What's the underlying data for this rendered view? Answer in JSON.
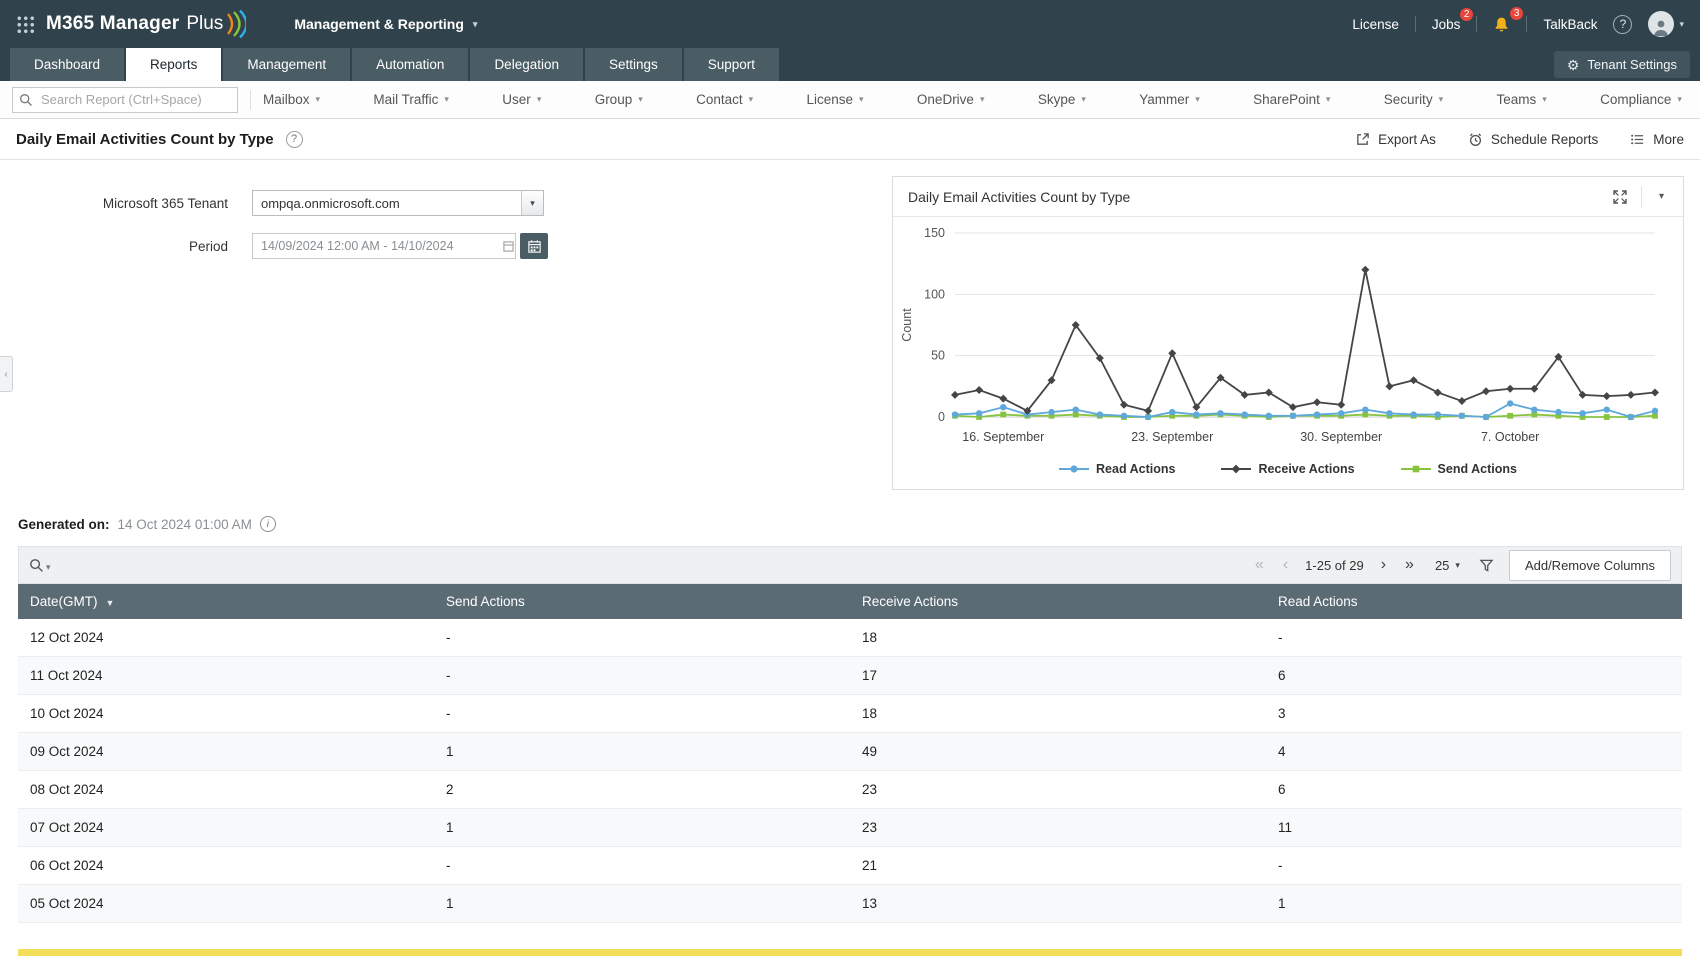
{
  "topbar": {
    "logo_primary": "M365 Manager",
    "logo_secondary": "Plus",
    "module": "Management & Reporting",
    "license_label": "License",
    "jobs_label": "Jobs",
    "jobs_badge": "2",
    "bell_badge": "3",
    "talkback_label": "TalkBack",
    "help_glyph": "?"
  },
  "nav": {
    "tabs": [
      {
        "label": "Dashboard",
        "active": false
      },
      {
        "label": "Reports",
        "active": true
      },
      {
        "label": "Management",
        "active": false
      },
      {
        "label": "Automation",
        "active": false
      },
      {
        "label": "Delegation",
        "active": false
      },
      {
        "label": "Settings",
        "active": false
      },
      {
        "label": "Support",
        "active": false
      }
    ],
    "tenant_settings_label": "Tenant Settings"
  },
  "menubar": {
    "search_placeholder": "Search Report (Ctrl+Space)",
    "items": [
      "Mailbox",
      "Mail Traffic",
      "User",
      "Group",
      "Contact",
      "License",
      "OneDrive",
      "Skype",
      "Yammer",
      "SharePoint",
      "Security",
      "Teams",
      "Compliance"
    ]
  },
  "report": {
    "title": "Daily Email Activities Count by Type",
    "help_glyph": "?",
    "actions": {
      "export": "Export As",
      "schedule": "Schedule Reports",
      "more": "More"
    }
  },
  "filters": {
    "tenant_label": "Microsoft 365 Tenant",
    "tenant_value": "ompqa.onmicrosoft.com",
    "period_label": "Period",
    "period_value": "14/09/2024 12:00 AM - 14/10/2024"
  },
  "generated": {
    "label": "Generated on:",
    "value": "14 Oct 2024 01:00 AM",
    "info_glyph": "i"
  },
  "toolbar": {
    "pagination": {
      "range": "1-25 of 29"
    },
    "page_size": "25",
    "add_remove_label": "Add/Remove Columns"
  },
  "table": {
    "columns": [
      "Date(GMT)",
      "Send Actions",
      "Receive Actions",
      "Read Actions"
    ],
    "rows": [
      [
        "12 Oct 2024",
        "-",
        "18",
        "-"
      ],
      [
        "11 Oct 2024",
        "-",
        "17",
        "6"
      ],
      [
        "10 Oct 2024",
        "-",
        "18",
        "3"
      ],
      [
        "09 Oct 2024",
        "1",
        "49",
        "4"
      ],
      [
        "08 Oct 2024",
        "2",
        "23",
        "6"
      ],
      [
        "07 Oct 2024",
        "1",
        "23",
        "11"
      ],
      [
        "06 Oct 2024",
        "-",
        "21",
        "-"
      ],
      [
        "05 Oct 2024",
        "1",
        "13",
        "1"
      ]
    ]
  },
  "chart_data": {
    "type": "line",
    "title": "Daily Email Activities Count by Type",
    "ylabel": "Count",
    "ylim": [
      0,
      150
    ],
    "yticks": [
      0,
      50,
      100,
      150
    ],
    "grid": true,
    "legend_position": "bottom",
    "x": [
      "14 Sep",
      "15 Sep",
      "16 Sep",
      "17 Sep",
      "18 Sep",
      "19 Sep",
      "20 Sep",
      "21 Sep",
      "22 Sep",
      "23 Sep",
      "24 Sep",
      "25 Sep",
      "26 Sep",
      "27 Sep",
      "28 Sep",
      "29 Sep",
      "30 Sep",
      "01 Oct",
      "02 Oct",
      "03 Oct",
      "04 Oct",
      "05 Oct",
      "06 Oct",
      "07 Oct",
      "08 Oct",
      "09 Oct",
      "10 Oct",
      "11 Oct",
      "12 Oct",
      "13 Oct"
    ],
    "x_tick_labels": [
      {
        "index": 2,
        "label": "16. September"
      },
      {
        "index": 9,
        "label": "23. September"
      },
      {
        "index": 16,
        "label": "30. September"
      },
      {
        "index": 23,
        "label": "7. October"
      }
    ],
    "series": [
      {
        "name": "Read Actions",
        "color": "#5ea8dc",
        "marker": "circle",
        "values": [
          2,
          3,
          8,
          2,
          4,
          6,
          2,
          1,
          0,
          4,
          2,
          3,
          2,
          1,
          1,
          2,
          3,
          6,
          3,
          2,
          2,
          1,
          0,
          11,
          6,
          4,
          3,
          6,
          0,
          5
        ]
      },
      {
        "name": "Receive Actions",
        "color": "#454545",
        "marker": "diamond",
        "values": [
          18,
          22,
          15,
          5,
          30,
          75,
          48,
          10,
          5,
          52,
          8,
          32,
          18,
          20,
          8,
          12,
          10,
          120,
          25,
          30,
          20,
          13,
          21,
          23,
          23,
          49,
          18,
          17,
          18,
          20
        ]
      },
      {
        "name": "Send Actions",
        "color": "#86c440",
        "marker": "square",
        "values": [
          1,
          0,
          2,
          1,
          1,
          2,
          1,
          0,
          0,
          1,
          1,
          2,
          1,
          0,
          1,
          1,
          1,
          2,
          1,
          1,
          0,
          1,
          0,
          1,
          2,
          1,
          0,
          0,
          0,
          1
        ]
      }
    ]
  },
  "colors": {
    "topbar_bg": "#30424b",
    "tab_bg": "#4a5c64",
    "table_header_bg": "#5a6b74",
    "badge_red": "#e8453c",
    "highlight_yellow": "#f1df5a"
  }
}
